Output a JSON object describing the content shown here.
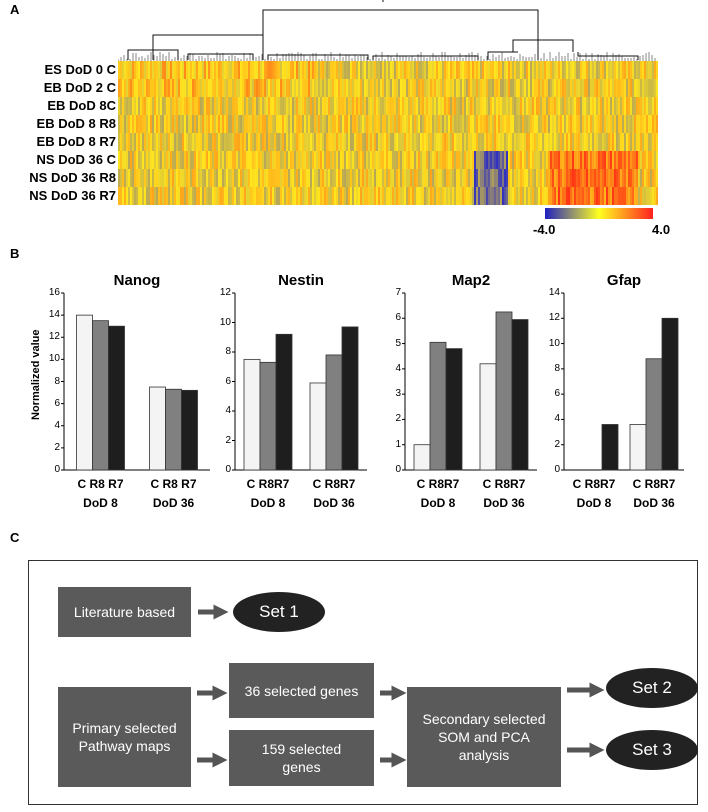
{
  "panels": {
    "a": "A",
    "b": "B",
    "c": "C"
  },
  "heatmap": {
    "rows": [
      "ES DoD 0 C",
      "EB DoD 2 C",
      "EB DoD 8C",
      "EB DoD 8 R8",
      "EB DoD 8 R7",
      "NS DoD 36 C",
      "NS DoD 36 R8",
      "NS DoD 36 R7"
    ],
    "colorbar": {
      "min_label": "-4.0",
      "max_label": "4.0",
      "colors": [
        "#2020c0",
        "#ffff20",
        "#ff2020"
      ]
    }
  },
  "y_axis_label": "Normalized value",
  "chart_data": [
    {
      "type": "bar",
      "title": "Nanog",
      "ylim": [
        0,
        16
      ],
      "yticks": [
        0,
        2,
        4,
        6,
        8,
        10,
        12,
        14,
        16
      ],
      "groups": [
        "DoD 8",
        "DoD 36"
      ],
      "categories": [
        [
          "C",
          "R8",
          "R7"
        ],
        [
          "C",
          "R8",
          "R7"
        ]
      ],
      "series": [
        {
          "name": "C",
          "values": [
            14,
            7.5
          ]
        },
        {
          "name": "R8",
          "values": [
            13.5,
            7.3
          ]
        },
        {
          "name": "R7",
          "values": [
            13,
            7.2
          ]
        }
      ]
    },
    {
      "type": "bar",
      "title": "Nestin",
      "ylim": [
        0,
        12
      ],
      "yticks": [
        0,
        2,
        4,
        6,
        8,
        10,
        12
      ],
      "groups": [
        "DoD 8",
        "DoD 36"
      ],
      "categories": [
        [
          "C",
          "R8R7"
        ],
        [
          "C",
          "R8R7"
        ]
      ],
      "series": [
        {
          "name": "C",
          "values": [
            7.5,
            5.9
          ]
        },
        {
          "name": "R8",
          "values": [
            7.3,
            7.8
          ]
        },
        {
          "name": "R7",
          "values": [
            9.2,
            9.7
          ]
        }
      ]
    },
    {
      "type": "bar",
      "title": "Map2",
      "ylim": [
        0,
        7
      ],
      "yticks": [
        0,
        1,
        2,
        3,
        4,
        5,
        6,
        7
      ],
      "groups": [
        "DoD 8",
        "DoD 36"
      ],
      "categories": [
        [
          "C",
          "R8R7"
        ],
        [
          "C",
          "R8R7"
        ]
      ],
      "series": [
        {
          "name": "C",
          "values": [
            1.0,
            4.2
          ]
        },
        {
          "name": "R8",
          "values": [
            5.05,
            6.25
          ]
        },
        {
          "name": "R7",
          "values": [
            4.8,
            5.95
          ]
        }
      ]
    },
    {
      "type": "bar",
      "title": "Gfap",
      "ylim": [
        0,
        14
      ],
      "yticks": [
        0,
        2,
        4,
        6,
        8,
        10,
        12,
        14
      ],
      "groups": [
        "DoD 8",
        "DoD 36"
      ],
      "categories": [
        [
          "C",
          "R8R7"
        ],
        [
          "C",
          "R8R7"
        ]
      ],
      "series": [
        {
          "name": "C",
          "values": [
            0,
            3.6
          ]
        },
        {
          "name": "R8",
          "values": [
            0,
            8.8
          ]
        },
        {
          "name": "R7",
          "values": [
            3.6,
            12.0
          ]
        }
      ]
    }
  ],
  "bar_colors": [
    "#f4f4f4",
    "#808080",
    "#1e1e1e"
  ],
  "flow": {
    "literature": "Literature based",
    "set1": "Set 1",
    "primary": "Primary selected Pathway maps",
    "genes36": "36 selected genes",
    "genes159": "159 selected genes",
    "secondary": "Secondary selected SOM and PCA analysis",
    "set2": "Set 2",
    "set3": "Set 3"
  }
}
